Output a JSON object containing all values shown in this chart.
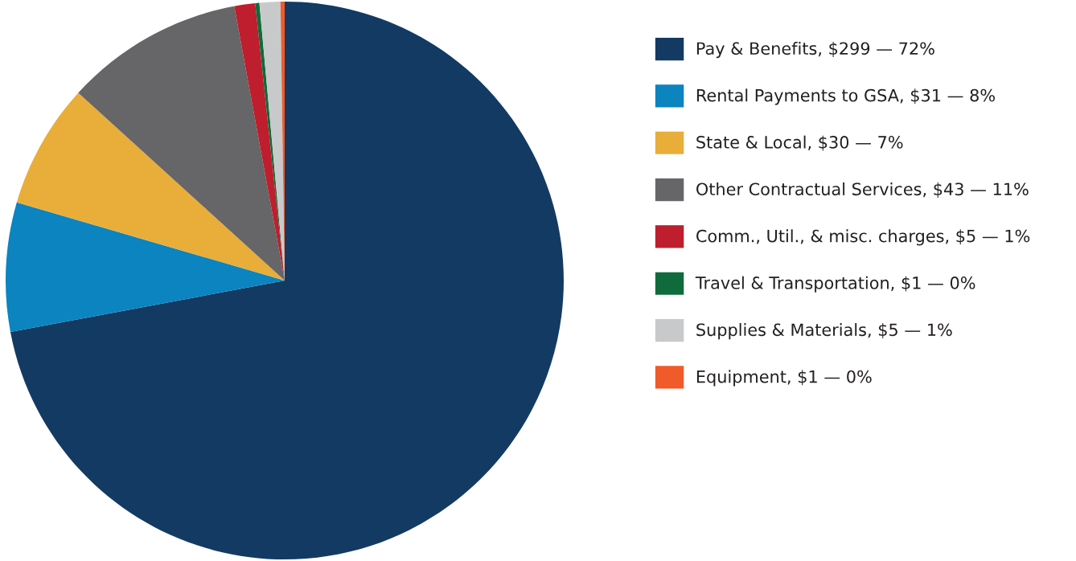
{
  "chart_data": {
    "type": "pie",
    "categories": [
      "Pay & Benefits, $299 — 72%",
      "Rental Payments to GSA, $31 — 8%",
      "State & Local, $30 — 7%",
      "Other Contractual Services, $43 — 11%",
      "Comm., Util., & misc. charges, $5 — 1%",
      "Travel & Transportation, $1 — 0%",
      "Supplies & Materials, $5 — 1%",
      "Equipment, $1 — 0%"
    ],
    "values": [
      299,
      31,
      30,
      43,
      5,
      1,
      5,
      1
    ],
    "colors": [
      "#133a63",
      "#0b84c0",
      "#e8ae39",
      "#666567",
      "#be1e2d",
      "#0f6b3b",
      "#c8c9cb",
      "#f15a29"
    ],
    "legend": "right"
  }
}
